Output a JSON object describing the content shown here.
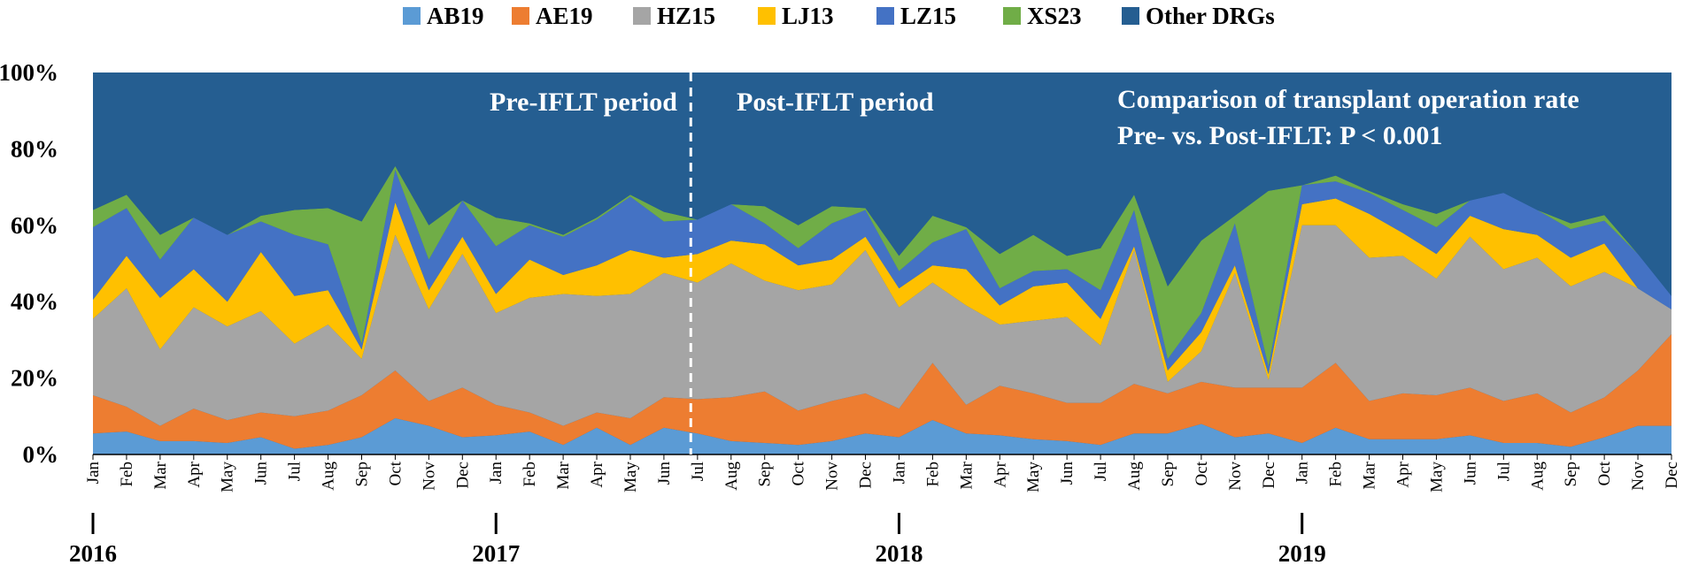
{
  "chart_data": {
    "type": "area",
    "stacked": "percent",
    "title": "",
    "xlabel": "",
    "ylabel": "",
    "ylim": [
      0,
      100
    ],
    "yticks": [
      "0%",
      "20%",
      "40%",
      "60%",
      "80%",
      "100%"
    ],
    "x": [
      "Jan",
      "Feb",
      "Mar",
      "Apr",
      "May",
      "Jun",
      "Jul",
      "Aug",
      "Sep",
      "Oct",
      "Nov",
      "Dec",
      "Jan",
      "Feb",
      "Mar",
      "Apr",
      "May",
      "Jun",
      "Jul",
      "Aug",
      "Sep",
      "Oct",
      "Nov",
      "Dec",
      "Jan",
      "Feb",
      "Mar",
      "Apr",
      "May",
      "Jun",
      "Jul",
      "Aug",
      "Sep",
      "Oct",
      "Nov",
      "Dec",
      "Jan",
      "Feb",
      "Mar",
      "Apr",
      "May",
      "Jun",
      "Jul",
      "Aug",
      "Sep",
      "Oct",
      "Nov",
      "Dec"
    ],
    "years": [
      {
        "label": "2016",
        "start_index": 0
      },
      {
        "label": "2017",
        "start_index": 12
      },
      {
        "label": "2018",
        "start_index": 24
      },
      {
        "label": "2019",
        "start_index": 36
      }
    ],
    "legend_position": "top",
    "series": [
      {
        "name": "AB19",
        "color": "#5B9BD5",
        "values": [
          5.5,
          6,
          3.5,
          3.5,
          3,
          4.5,
          1.5,
          2.5,
          4.5,
          9.5,
          7.5,
          4.5,
          5,
          6,
          2.5,
          7,
          2.5,
          7,
          5.5,
          3.5,
          3,
          2.5,
          3.5,
          5.5,
          4.5,
          9,
          5.5,
          5,
          4,
          3.5,
          2.5,
          5.5,
          5.5,
          8,
          4.5,
          5.5,
          3,
          7,
          4,
          4,
          4,
          5,
          3,
          3,
          2,
          4.5,
          7.5,
          7.5
        ]
      },
      {
        "name": "AE19",
        "color": "#ED7D31",
        "values": [
          10,
          6.5,
          4,
          8.5,
          6,
          6.5,
          8.5,
          9,
          11,
          12.5,
          6.5,
          13,
          8,
          5,
          5,
          4,
          7,
          8,
          9,
          11.5,
          13.5,
          9,
          10.5,
          10.5,
          7.5,
          15,
          7.5,
          13,
          12,
          10,
          11,
          13,
          10.5,
          11,
          13,
          12,
          14.5,
          17,
          10,
          12,
          11.5,
          12.5,
          11,
          13,
          9,
          10.5,
          14.5,
          24
        ]
      },
      {
        "name": "HZ15",
        "color": "#A5A5A5",
        "values": [
          20,
          31,
          20,
          26.5,
          24.5,
          26.5,
          19,
          22.5,
          9.5,
          35.5,
          24,
          35,
          24,
          30,
          34.5,
          30.5,
          32.5,
          32.5,
          30.5,
          35,
          29,
          31.5,
          30.5,
          37.5,
          26.5,
          21,
          26,
          16,
          19,
          22.5,
          15,
          35,
          3,
          8,
          30,
          2,
          42.5,
          36,
          37.5,
          36,
          30.5,
          39.5,
          34.5,
          35.5,
          33,
          33,
          21.5,
          6.5
        ]
      },
      {
        "name": "LJ13",
        "color": "#FFC000",
        "values": [
          5,
          8.5,
          13.5,
          10,
          6.5,
          15.5,
          12.5,
          9,
          2.5,
          8.5,
          5,
          4.5,
          5,
          10,
          5,
          8,
          11.5,
          4,
          7.5,
          6,
          9.5,
          6.5,
          6.5,
          3.5,
          5,
          4.5,
          9.5,
          5,
          9,
          9,
          7,
          1,
          3,
          5,
          2,
          1.5,
          5.5,
          7,
          11.5,
          6,
          6.5,
          5.5,
          10.5,
          6,
          7.5,
          7.5,
          0,
          0
        ]
      },
      {
        "name": "LZ15",
        "color": "#4472C4",
        "values": [
          19,
          12.5,
          10,
          13.5,
          17.5,
          8,
          16,
          12,
          1.5,
          8.5,
          8,
          9.5,
          12.5,
          9,
          10,
          12,
          14,
          9.5,
          9,
          9.5,
          5.5,
          4.5,
          9.5,
          7,
          4.5,
          6,
          10.5,
          4.5,
          4,
          3.5,
          7.5,
          9.5,
          3,
          5,
          11,
          2,
          5,
          4.5,
          5.5,
          6,
          7,
          4,
          9.5,
          6.5,
          7.5,
          6,
          9,
          3.5
        ]
      },
      {
        "name": "XS23",
        "color": "#70AD47",
        "values": [
          4.5,
          3.5,
          6.5,
          0,
          0,
          1.5,
          6.5,
          9.5,
          32,
          1,
          9,
          0,
          7.5,
          0.5,
          0.5,
          0.5,
          0.5,
          2.5,
          0,
          0,
          4.5,
          6,
          4.5,
          0.5,
          4,
          7,
          0.5,
          9,
          9.5,
          3.5,
          11,
          4,
          19,
          19,
          2,
          46,
          0,
          1.5,
          0.5,
          1.5,
          3.5,
          0,
          0,
          0,
          1.5,
          1.5,
          0,
          0
        ]
      },
      {
        "name": "Other DRGs",
        "color": "#255E91",
        "values": [
          36,
          32,
          42.5,
          38,
          42.5,
          37.5,
          36,
          35.5,
          39,
          24.5,
          40,
          33.5,
          38,
          39.5,
          42.5,
          38,
          32,
          36.5,
          38.5,
          34.5,
          35,
          40,
          35,
          35.5,
          48,
          37.5,
          40.5,
          47.5,
          42.5,
          48,
          46,
          32,
          56,
          44,
          37.5,
          31,
          29.5,
          27,
          31,
          34.5,
          37,
          33.5,
          31.5,
          36,
          39.5,
          37.5,
          47.5,
          58.5
        ]
      }
    ],
    "annotations": [
      {
        "text": "Pre-IFLT period"
      },
      {
        "text": "Post-IFLT period"
      },
      {
        "text": "Comparison of transplant operation rate"
      },
      {
        "text": "Pre- vs. Post-IFLT: P < 0.001"
      }
    ]
  }
}
